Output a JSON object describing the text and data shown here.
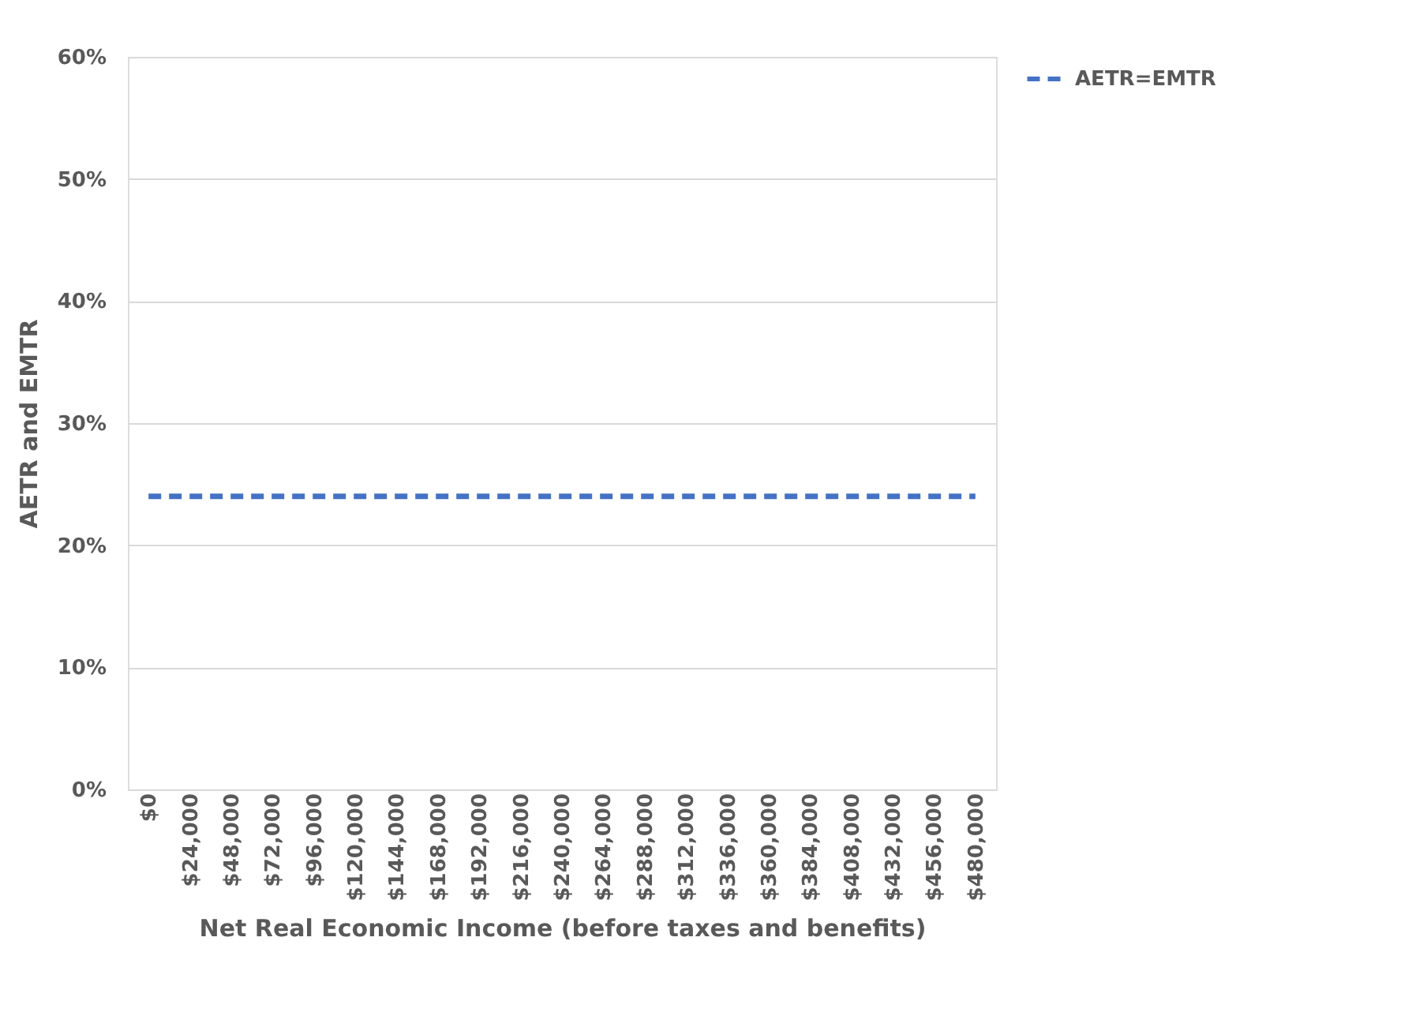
{
  "chart_data": {
    "type": "line",
    "xlabel": "Net Real Economic Income (before taxes and benefits)",
    "ylabel": "AETR and EMTR",
    "categories": [
      "$0",
      "$24,000",
      "$48,000",
      "$72,000",
      "$96,000",
      "$120,000",
      "$144,000",
      "$168,000",
      "$192,000",
      "$216,000",
      "$240,000",
      "$264,000",
      "$288,000",
      "$312,000",
      "$336,000",
      "$360,000",
      "$384,000",
      "$408,000",
      "$432,000",
      "$456,000",
      "$480,000"
    ],
    "series": [
      {
        "name": "AETR=EMTR",
        "color": "#4472c4",
        "values": [
          24,
          24,
          24,
          24,
          24,
          24,
          24,
          24,
          24,
          24,
          24,
          24,
          24,
          24,
          24,
          24,
          24,
          24,
          24,
          24,
          24
        ]
      }
    ],
    "ylim": [
      0,
      60
    ],
    "yticks": [
      {
        "value": 0,
        "label": "0%"
      },
      {
        "value": 10,
        "label": "10%"
      },
      {
        "value": 20,
        "label": "20%"
      },
      {
        "value": 30,
        "label": "30%"
      },
      {
        "value": 40,
        "label": "40%"
      },
      {
        "value": 50,
        "label": "50%"
      },
      {
        "value": 60,
        "label": "60%"
      }
    ],
    "grid": "y",
    "legend": "right",
    "marker": "none",
    "line_style": "dashed"
  }
}
